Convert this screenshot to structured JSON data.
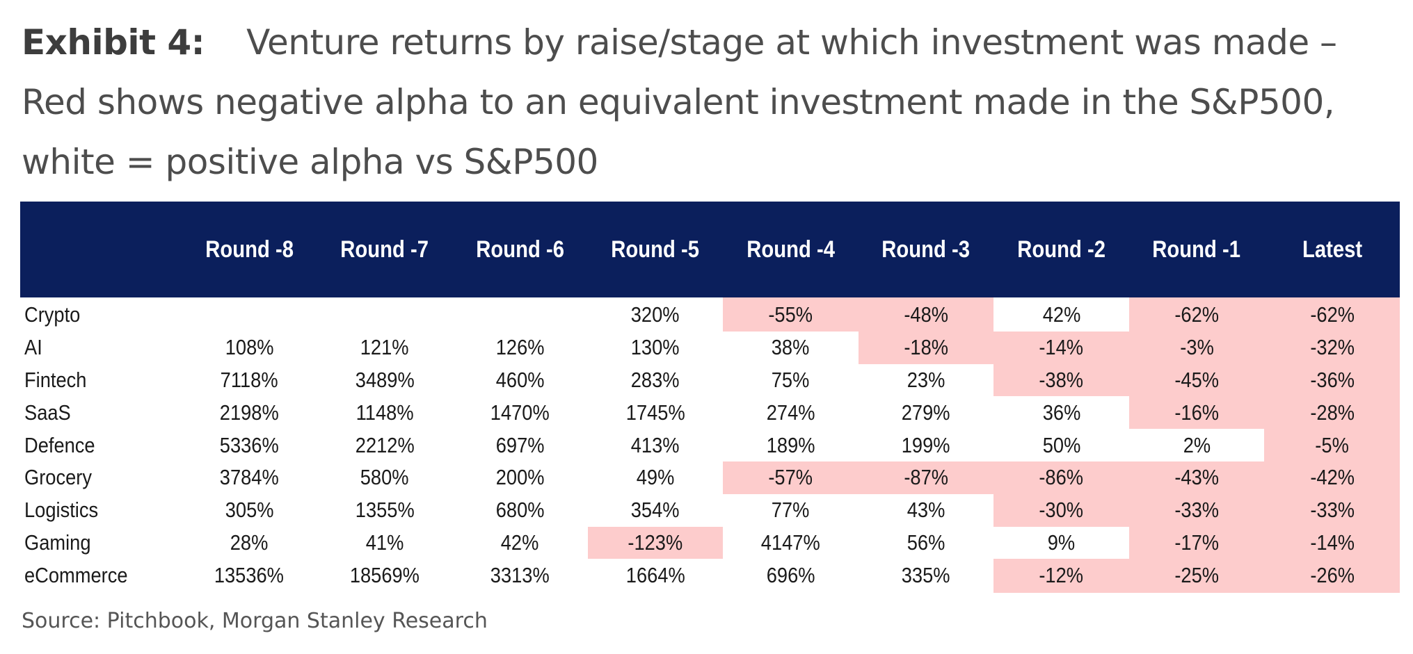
{
  "title": {
    "label": "Exhibit 4:",
    "text": "Venture returns by raise/stage at which investment was made – Red shows negative alpha to an equivalent investment made in the S&P500, white = positive alpha vs S&P500"
  },
  "colors": {
    "header_bg": "#0b1f5c",
    "header_text": "#ffffff",
    "negative_alpha": "#fdcccc",
    "positive_alpha": "#ffffff"
  },
  "chart_data": {
    "type": "table",
    "columns": [
      "Round -8",
      "Round -7",
      "Round -6",
      "Round -5",
      "Round -4",
      "Round -3",
      "Round -2",
      "Round -1",
      "Latest"
    ],
    "rows": [
      {
        "category": "Crypto",
        "values": [
          "",
          "",
          "",
          "320%",
          "-55%",
          "-48%",
          "42%",
          "-62%",
          "-62%"
        ],
        "negative_alpha": [
          false,
          false,
          false,
          false,
          true,
          true,
          false,
          true,
          true
        ]
      },
      {
        "category": "AI",
        "values": [
          "108%",
          "121%",
          "126%",
          "130%",
          "38%",
          "-18%",
          "-14%",
          "-3%",
          "-32%"
        ],
        "negative_alpha": [
          false,
          false,
          false,
          false,
          false,
          true,
          true,
          true,
          true
        ]
      },
      {
        "category": "Fintech",
        "values": [
          "7118%",
          "3489%",
          "460%",
          "283%",
          "75%",
          "23%",
          "-38%",
          "-45%",
          "-36%"
        ],
        "negative_alpha": [
          false,
          false,
          false,
          false,
          false,
          false,
          true,
          true,
          true
        ]
      },
      {
        "category": "SaaS",
        "values": [
          "2198%",
          "1148%",
          "1470%",
          "1745%",
          "274%",
          "279%",
          "36%",
          "-16%",
          "-28%"
        ],
        "negative_alpha": [
          false,
          false,
          false,
          false,
          false,
          false,
          false,
          true,
          true
        ]
      },
      {
        "category": "Defence",
        "values": [
          "5336%",
          "2212%",
          "697%",
          "413%",
          "189%",
          "199%",
          "50%",
          "2%",
          "-5%"
        ],
        "negative_alpha": [
          false,
          false,
          false,
          false,
          false,
          false,
          false,
          false,
          true
        ]
      },
      {
        "category": "Grocery",
        "values": [
          "3784%",
          "580%",
          "200%",
          "49%",
          "-57%",
          "-87%",
          "-86%",
          "-43%",
          "-42%"
        ],
        "negative_alpha": [
          false,
          false,
          false,
          false,
          true,
          true,
          true,
          true,
          true
        ]
      },
      {
        "category": "Logistics",
        "values": [
          "305%",
          "1355%",
          "680%",
          "354%",
          "77%",
          "43%",
          "-30%",
          "-33%",
          "-33%"
        ],
        "negative_alpha": [
          false,
          false,
          false,
          false,
          false,
          false,
          true,
          true,
          true
        ]
      },
      {
        "category": "Gaming",
        "values": [
          "28%",
          "41%",
          "42%",
          "-123%",
          "4147%",
          "56%",
          "9%",
          "-17%",
          "-14%"
        ],
        "negative_alpha": [
          false,
          false,
          false,
          true,
          false,
          false,
          false,
          true,
          true
        ]
      },
      {
        "category": "eCommerce",
        "values": [
          "13536%",
          "18569%",
          "3313%",
          "1664%",
          "696%",
          "335%",
          "-12%",
          "-25%",
          "-26%"
        ],
        "negative_alpha": [
          false,
          false,
          false,
          false,
          false,
          false,
          true,
          true,
          true
        ]
      }
    ]
  },
  "source": "Source: Pitchbook, Morgan Stanley Research"
}
